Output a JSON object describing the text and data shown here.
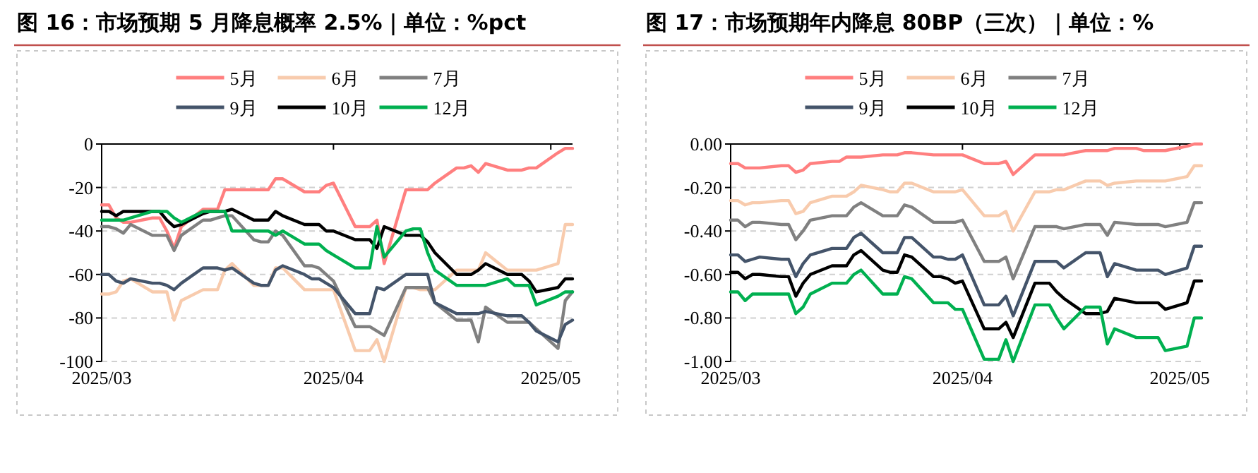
{
  "chart_data": [
    {
      "type": "line",
      "title": "图 16：市场预期 5 月降息概率 2.5%｜单位：%pct",
      "legend": "top",
      "grid": "y",
      "x": [
        "2025-03-03",
        "2025-03-04",
        "2025-03-05",
        "2025-03-06",
        "2025-03-07",
        "2025-03-10",
        "2025-03-11",
        "2025-03-12",
        "2025-03-13",
        "2025-03-14",
        "2025-03-17",
        "2025-03-18",
        "2025-03-19",
        "2025-03-20",
        "2025-03-21",
        "2025-03-24",
        "2025-03-25",
        "2025-03-26",
        "2025-03-27",
        "2025-03-28",
        "2025-03-31",
        "2025-04-01",
        "2025-04-02",
        "2025-04-03",
        "2025-04-04",
        "2025-04-07",
        "2025-04-08",
        "2025-04-09",
        "2025-04-10",
        "2025-04-11",
        "2025-04-14",
        "2025-04-15",
        "2025-04-16",
        "2025-04-17",
        "2025-04-18",
        "2025-04-21",
        "2025-04-22",
        "2025-04-23",
        "2025-04-24",
        "2025-04-25",
        "2025-04-28",
        "2025-04-29",
        "2025-04-30",
        "2025-05-01",
        "2025-05-02",
        "2025-05-05",
        "2025-05-06",
        "2025-05-07"
      ],
      "xlim": [
        "2025-03-03",
        "2025-05-07"
      ],
      "xticks": [
        {
          "value": "2025-03-03",
          "label": "2025/03"
        },
        {
          "value": "2025-04-04",
          "label": "2025/04"
        },
        {
          "value": "2025-05-04",
          "label": "2025/05"
        }
      ],
      "ylim": [
        -100,
        0
      ],
      "yticks": [
        0,
        -20,
        -40,
        -60,
        -80,
        -100
      ],
      "series": [
        {
          "name": "5月",
          "color": "#ff7f7f",
          "values": [
            -28,
            -28,
            -34,
            -36,
            -36,
            -34,
            -34,
            -40,
            -48,
            -38,
            -30,
            -30,
            -30,
            -21,
            -21,
            -21,
            -21,
            -21,
            -16,
            -16,
            -22,
            -22,
            -22,
            -19,
            -18,
            -38,
            -38,
            -38,
            -35,
            -55,
            -21,
            -21,
            -21,
            -21,
            -18,
            -11,
            -11,
            -10,
            -13,
            -9,
            -12,
            -12,
            -12,
            -11,
            -11,
            -4,
            -2,
            -2
          ]
        },
        {
          "name": "6月",
          "color": "#f8cbad",
          "values": [
            -69,
            -69,
            -68,
            -63,
            -62,
            -68,
            -68,
            -68,
            -81,
            -72,
            -67,
            -67,
            -67,
            -58,
            -55,
            -65,
            -65,
            -65,
            -57,
            -57,
            -67,
            -67,
            -67,
            -67,
            -67,
            -95,
            -95,
            -95,
            -90,
            -100,
            -66,
            -66,
            -67,
            -67,
            -67,
            -58,
            -58,
            -58,
            -58,
            -50,
            -58,
            -58,
            -58,
            -58,
            -58,
            -55,
            -37,
            -37
          ]
        },
        {
          "name": "7月",
          "color": "#808080",
          "values": [
            -38,
            -38,
            -39,
            -41,
            -37,
            -42,
            -42,
            -42,
            -49,
            -42,
            -35,
            -35,
            -34,
            -33,
            -33,
            -44,
            -45,
            -45,
            -40,
            -42,
            -56,
            -56,
            -57,
            -60,
            -63,
            -84,
            -84,
            -84,
            -86,
            -88,
            -66,
            -66,
            -66,
            -66,
            -73,
            -81,
            -81,
            -81,
            -91,
            -75,
            -82,
            -82,
            -82,
            -82,
            -85,
            -94,
            -72,
            -68
          ]
        },
        {
          "name": "9月",
          "color": "#44546a",
          "values": [
            -60,
            -60,
            -63,
            -64,
            -62,
            -64,
            -64,
            -65,
            -67,
            -64,
            -57,
            -57,
            -57,
            -58,
            -57,
            -64,
            -65,
            -65,
            -58,
            -56,
            -60,
            -62,
            -62,
            -64,
            -66,
            -78,
            -78,
            -78,
            -66,
            -67,
            -60,
            -60,
            -60,
            -60,
            -73,
            -78,
            -78,
            -78,
            -78,
            -77,
            -79,
            -79,
            -79,
            -82,
            -86,
            -91,
            -83,
            -81
          ]
        },
        {
          "name": "10月",
          "color": "#000000",
          "values": [
            -31,
            -31,
            -33,
            -31,
            -31,
            -31,
            -31,
            -35,
            -38,
            -37,
            -32,
            -31,
            -31,
            -31,
            -30,
            -35,
            -35,
            -35,
            -31,
            -33,
            -37,
            -37,
            -37,
            -40,
            -40,
            -44,
            -44,
            -44,
            -48,
            -38,
            -42,
            -42,
            -42,
            -45,
            -50,
            -60,
            -60,
            -60,
            -58,
            -55,
            -60,
            -60,
            -60,
            -63,
            -68,
            -66,
            -62,
            -62
          ]
        },
        {
          "name": "12月",
          "color": "#00b050",
          "values": [
            -35,
            -35,
            -35,
            -35,
            -34,
            -31,
            -31,
            -31,
            -34,
            -36,
            -31,
            -31,
            -31,
            -31,
            -40,
            -40,
            -40,
            -40,
            -42,
            -40,
            -46,
            -46,
            -46,
            -49,
            -51,
            -57,
            -57,
            -57,
            -38,
            -52,
            -40,
            -39,
            -39,
            -50,
            -58,
            -65,
            -65,
            -65,
            -65,
            -65,
            -62,
            -65,
            -65,
            -65,
            -74,
            -70,
            -68,
            -68
          ]
        }
      ]
    },
    {
      "type": "line",
      "title": "图 17：市场预期年内降息 80BP（三次）｜单位：%",
      "legend": "top",
      "grid": "y",
      "x": [
        "2025-03-03",
        "2025-03-04",
        "2025-03-05",
        "2025-03-06",
        "2025-03-07",
        "2025-03-10",
        "2025-03-11",
        "2025-03-12",
        "2025-03-13",
        "2025-03-14",
        "2025-03-17",
        "2025-03-18",
        "2025-03-19",
        "2025-03-20",
        "2025-03-21",
        "2025-03-24",
        "2025-03-25",
        "2025-03-26",
        "2025-03-27",
        "2025-03-28",
        "2025-03-31",
        "2025-04-01",
        "2025-04-02",
        "2025-04-03",
        "2025-04-04",
        "2025-04-07",
        "2025-04-08",
        "2025-04-09",
        "2025-04-10",
        "2025-04-11",
        "2025-04-14",
        "2025-04-15",
        "2025-04-16",
        "2025-04-17",
        "2025-04-18",
        "2025-04-21",
        "2025-04-22",
        "2025-04-23",
        "2025-04-24",
        "2025-04-25",
        "2025-04-28",
        "2025-04-29",
        "2025-04-30",
        "2025-05-01",
        "2025-05-02",
        "2025-05-05",
        "2025-05-06",
        "2025-05-07"
      ],
      "xlim": [
        "2025-03-03",
        "2025-05-07"
      ],
      "xticks": [
        {
          "value": "2025-03-03",
          "label": "2025/03"
        },
        {
          "value": "2025-04-04",
          "label": "2025/04"
        },
        {
          "value": "2025-05-04",
          "label": "2025/05"
        }
      ],
      "ylim": [
        -1,
        0
      ],
      "yticks": [
        {
          "value": 0,
          "label": "0.00"
        },
        {
          "value": -0.2,
          "label": "-0.20"
        },
        {
          "value": -0.4,
          "label": "-0.40"
        },
        {
          "value": -0.6,
          "label": "-0.60"
        },
        {
          "value": -0.8,
          "label": "-0.80"
        },
        {
          "value": -1,
          "label": "-1.00"
        }
      ],
      "series": [
        {
          "name": "5月",
          "color": "#ff7f7f",
          "values": [
            -0.09,
            -0.09,
            -0.11,
            -0.11,
            -0.11,
            -0.1,
            -0.1,
            -0.13,
            -0.12,
            -0.09,
            -0.08,
            -0.08,
            -0.06,
            -0.06,
            -0.06,
            -0.05,
            -0.05,
            -0.05,
            -0.04,
            -0.04,
            -0.05,
            -0.05,
            -0.05,
            -0.05,
            -0.05,
            -0.09,
            -0.09,
            -0.09,
            -0.08,
            -0.14,
            -0.05,
            -0.05,
            -0.05,
            -0.05,
            -0.05,
            -0.03,
            -0.03,
            -0.03,
            -0.03,
            -0.02,
            -0.02,
            -0.03,
            -0.03,
            -0.03,
            -0.03,
            -0.01,
            0.0,
            0.0
          ]
        },
        {
          "name": "6月",
          "color": "#f8cbad",
          "values": [
            -0.26,
            -0.26,
            -0.28,
            -0.27,
            -0.27,
            -0.26,
            -0.26,
            -0.32,
            -0.31,
            -0.27,
            -0.24,
            -0.24,
            -0.24,
            -0.22,
            -0.19,
            -0.21,
            -0.22,
            -0.22,
            -0.18,
            -0.18,
            -0.22,
            -0.22,
            -0.22,
            -0.22,
            -0.21,
            -0.33,
            -0.33,
            -0.33,
            -0.31,
            -0.4,
            -0.22,
            -0.22,
            -0.22,
            -0.21,
            -0.21,
            -0.17,
            -0.17,
            -0.17,
            -0.19,
            -0.18,
            -0.17,
            -0.17,
            -0.17,
            -0.17,
            -0.17,
            -0.15,
            -0.1,
            -0.1
          ]
        },
        {
          "name": "7月",
          "color": "#808080",
          "values": [
            -0.35,
            -0.35,
            -0.38,
            -0.36,
            -0.36,
            -0.37,
            -0.37,
            -0.44,
            -0.4,
            -0.35,
            -0.33,
            -0.33,
            -0.33,
            -0.29,
            -0.27,
            -0.33,
            -0.33,
            -0.33,
            -0.28,
            -0.29,
            -0.36,
            -0.36,
            -0.36,
            -0.36,
            -0.35,
            -0.54,
            -0.54,
            -0.54,
            -0.52,
            -0.62,
            -0.38,
            -0.38,
            -0.38,
            -0.38,
            -0.39,
            -0.37,
            -0.37,
            -0.37,
            -0.42,
            -0.36,
            -0.37,
            -0.37,
            -0.37,
            -0.37,
            -0.38,
            -0.36,
            -0.27,
            -0.27
          ]
        },
        {
          "name": "9月",
          "color": "#44546a",
          "values": [
            -0.51,
            -0.51,
            -0.54,
            -0.53,
            -0.52,
            -0.53,
            -0.53,
            -0.61,
            -0.55,
            -0.51,
            -0.48,
            -0.48,
            -0.48,
            -0.43,
            -0.41,
            -0.5,
            -0.5,
            -0.5,
            -0.43,
            -0.43,
            -0.52,
            -0.52,
            -0.53,
            -0.53,
            -0.51,
            -0.74,
            -0.74,
            -0.74,
            -0.7,
            -0.79,
            -0.54,
            -0.54,
            -0.54,
            -0.54,
            -0.57,
            -0.5,
            -0.5,
            -0.5,
            -0.61,
            -0.55,
            -0.58,
            -0.58,
            -0.58,
            -0.58,
            -0.6,
            -0.57,
            -0.47,
            -0.47
          ]
        },
        {
          "name": "10月",
          "color": "#000000",
          "values": [
            -0.59,
            -0.59,
            -0.62,
            -0.6,
            -0.6,
            -0.61,
            -0.61,
            -0.7,
            -0.64,
            -0.6,
            -0.56,
            -0.56,
            -0.56,
            -0.51,
            -0.49,
            -0.58,
            -0.59,
            -0.59,
            -0.51,
            -0.52,
            -0.61,
            -0.61,
            -0.62,
            -0.64,
            -0.63,
            -0.85,
            -0.85,
            -0.85,
            -0.82,
            -0.89,
            -0.64,
            -0.64,
            -0.64,
            -0.68,
            -0.71,
            -0.78,
            -0.78,
            -0.78,
            -0.77,
            -0.71,
            -0.73,
            -0.73,
            -0.73,
            -0.73,
            -0.76,
            -0.73,
            -0.63,
            -0.63
          ]
        },
        {
          "name": "12月",
          "color": "#00b050",
          "values": [
            -0.68,
            -0.68,
            -0.72,
            -0.69,
            -0.69,
            -0.69,
            -0.69,
            -0.78,
            -0.75,
            -0.69,
            -0.64,
            -0.64,
            -0.64,
            -0.6,
            -0.58,
            -0.69,
            -0.69,
            -0.69,
            -0.61,
            -0.62,
            -0.73,
            -0.73,
            -0.73,
            -0.76,
            -0.76,
            -0.99,
            -0.99,
            -0.99,
            -0.9,
            -1.0,
            -0.74,
            -0.74,
            -0.74,
            -0.8,
            -0.85,
            -0.75,
            -0.75,
            -0.75,
            -0.92,
            -0.85,
            -0.89,
            -0.89,
            -0.89,
            -0.89,
            -0.95,
            -0.93,
            -0.8,
            -0.8
          ]
        }
      ]
    }
  ]
}
